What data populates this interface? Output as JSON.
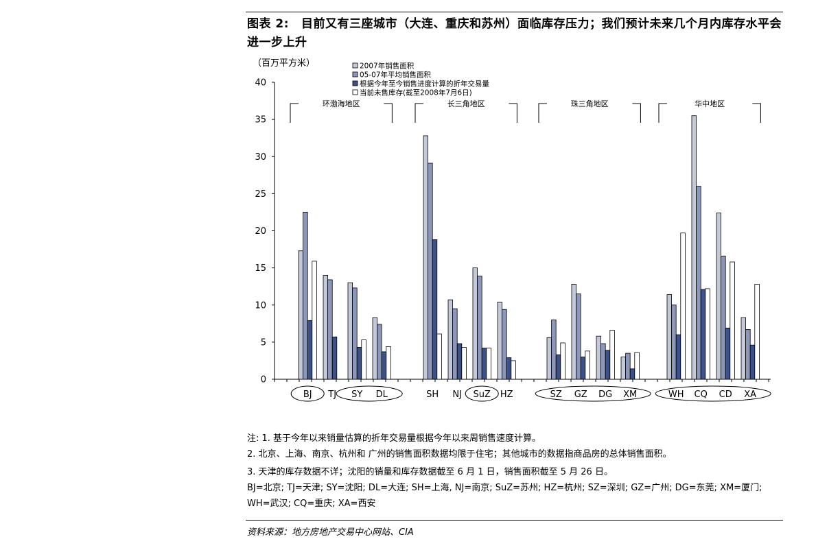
{
  "figure": {
    "label": "图表 2:",
    "title": "目前又有三座城市（大连、重庆和苏州）面临库存压力；我们预计未来几个月内库存水平会进一步上升"
  },
  "notes": [
    "注: 1. 基于今年以来销量估算的折年交易量根据今年以来周销售速度计算。",
    "2. 北京、上海、南京、杭州和 广州的销售面积数据均限于住宅；其他城市的数据指商品房的总体销售面积。",
    "3. 天津的库存数据不详；沈阳的销量和库存数据截至 6 月 1 日，销售面积截至 5 月 26 日。",
    "BJ=北京; TJ=天津; SY=沈阳; DL=大连; SH=上海, NJ=南京; SuZ=苏州; HZ=杭州; SZ=深圳; GZ=广州; DG=东莞; XM=厦门;",
    "WH=武汉; CQ=重庆; XA=西安"
  ],
  "source": "资料来源：地方房地产交易中心网站、CIA",
  "chart_data": {
    "type": "bar",
    "unit_label": "（百万平方米）",
    "ylim": [
      0,
      40
    ],
    "yticks": [
      0,
      5,
      10,
      15,
      20,
      25,
      30,
      35,
      40
    ],
    "categories": [
      "BJ",
      "TJ",
      "SY",
      "DL",
      "SH",
      "NJ",
      "SuZ",
      "HZ",
      "SZ",
      "GZ",
      "DG",
      "XM",
      "WH",
      "CQ",
      "CD",
      "XA"
    ],
    "circled": [
      "BJ",
      "SuZ"
    ],
    "region_groups": [
      {
        "name": "环渤海地区",
        "categories": [
          "BJ",
          "TJ",
          "SY",
          "DL"
        ]
      },
      {
        "name": "长三角地区",
        "categories": [
          "SH",
          "NJ",
          "SuZ",
          "HZ"
        ]
      },
      {
        "name": "珠三角地区",
        "categories": [
          "SZ",
          "GZ",
          "DG",
          "XM"
        ]
      },
      {
        "name": "华中地区",
        "categories": [
          "WH",
          "CQ",
          "CD",
          "XA"
        ]
      }
    ],
    "ellipse_groups": [
      [
        "SY",
        "DL"
      ],
      [
        "SZ",
        "GZ",
        "DG",
        "XM"
      ],
      [
        "WH",
        "CQ",
        "CD",
        "XA"
      ]
    ],
    "series": [
      {
        "name": "2007年销售面积",
        "color": "#c4c9d9",
        "values": [
          17.3,
          14.0,
          13.0,
          8.3,
          32.8,
          10.7,
          15.0,
          10.4,
          5.6,
          12.8,
          5.8,
          3.0,
          11.4,
          35.5,
          22.4,
          8.3
        ]
      },
      {
        "name": "05-07年平均销售面积",
        "color": "#8c97ba",
        "values": [
          22.5,
          13.4,
          12.3,
          7.4,
          29.1,
          9.5,
          13.9,
          9.4,
          8.0,
          11.5,
          4.8,
          3.5,
          10.0,
          26.0,
          16.6,
          6.7
        ]
      },
      {
        "name": "根据今年至今销售进度计算的折年交易量",
        "color": "#3c5189",
        "values": [
          7.9,
          5.7,
          4.3,
          3.7,
          18.8,
          4.8,
          4.2,
          2.9,
          3.3,
          3.0,
          3.9,
          1.4,
          6.0,
          12.1,
          6.9,
          4.6
        ]
      },
      {
        "name": "当前未售库存(截至2008年7月6日)",
        "color": "#ffffff",
        "values": [
          15.9,
          null,
          5.3,
          4.4,
          6.1,
          4.3,
          4.2,
          2.5,
          4.9,
          3.8,
          6.6,
          3.6,
          19.7,
          12.2,
          15.8,
          12.8
        ]
      }
    ]
  }
}
